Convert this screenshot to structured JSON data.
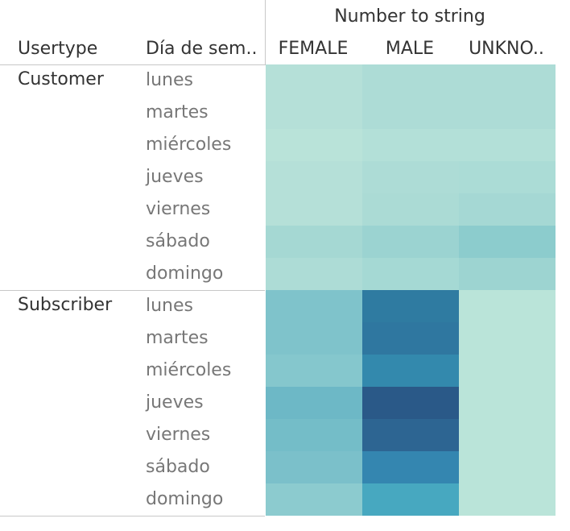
{
  "chart_data": {
    "type": "heatmap",
    "column_group_title": "Number to string",
    "row_headers": [
      "Usertype",
      "Día de sem.."
    ],
    "columns": [
      "FEMALE",
      "MALE",
      "UNKNO.."
    ],
    "groups": [
      {
        "name": "Customer",
        "rows": [
          {
            "day": "lunes",
            "colors": [
              "#b5e0d8",
              "#addcd6",
              "#addcd6"
            ]
          },
          {
            "day": "martes",
            "colors": [
              "#b5e0d8",
              "#addcd6",
              "#addcd6"
            ]
          },
          {
            "day": "miércoles",
            "colors": [
              "#b9e3d9",
              "#b3e0d8",
              "#b3e0d8"
            ]
          },
          {
            "day": "jueves",
            "colors": [
              "#b5e0d8",
              "#addcd6",
              "#abdcd6"
            ]
          },
          {
            "day": "viernes",
            "colors": [
              "#b5e0d8",
              "#abdbd5",
              "#a5d8d4"
            ]
          },
          {
            "day": "sábado",
            "colors": [
              "#a5d8d3",
              "#9bd3d1",
              "#8ccccd"
            ]
          },
          {
            "day": "domingo",
            "colors": [
              "#addcd6",
              "#a5d9d4",
              "#9dd4d1"
            ]
          }
        ]
      },
      {
        "name": "Subscriber",
        "rows": [
          {
            "day": "lunes",
            "colors": [
              "#7fc3cb",
              "#2f7ba1",
              "#bae4d9"
            ]
          },
          {
            "day": "martes",
            "colors": [
              "#7fc3cb",
              "#2f77a0",
              "#bae4d9"
            ]
          },
          {
            "day": "miércoles",
            "colors": [
              "#85c7cd",
              "#3389ad",
              "#bae4d9"
            ]
          },
          {
            "day": "jueves",
            "colors": [
              "#6db8c6",
              "#2a5988",
              "#bae4d9"
            ]
          },
          {
            "day": "viernes",
            "colors": [
              "#74bdc8",
              "#2d6592",
              "#bae4d9"
            ]
          },
          {
            "day": "sábado",
            "colors": [
              "#7bc0ca",
              "#3486b0",
              "#bae4d9"
            ]
          },
          {
            "day": "domingo",
            "colors": [
              "#8ccbcf",
              "#47a8c0",
              "#bae4d9"
            ]
          }
        ]
      }
    ]
  }
}
